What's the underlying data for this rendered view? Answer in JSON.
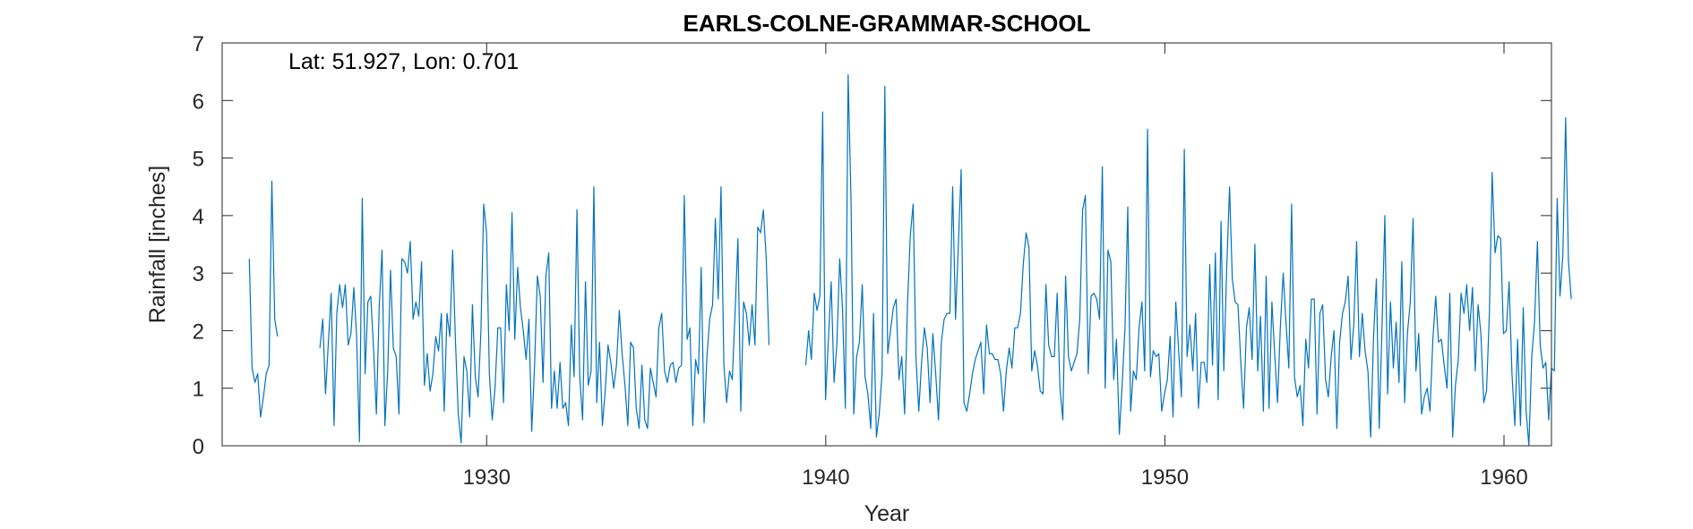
{
  "chart_data": {
    "type": "line",
    "title": "EARLS-COLNE-GRAMMAR-SCHOOL",
    "xlabel": "Year",
    "ylabel": "Rainfall [inches]",
    "annotation": "Lat: 51.927, Lon: 0.701",
    "xlim": [
      1922.2,
      1961.4
    ],
    "ylim": [
      0,
      7
    ],
    "xticks": [
      1930,
      1940,
      1950,
      1960
    ],
    "yticks": [
      0,
      1,
      2,
      3,
      4,
      5,
      6,
      7
    ],
    "grid": false,
    "line_color": "#0072BD",
    "series": [
      {
        "start": 1923.0,
        "step": 0.0833,
        "note_gaps": "null values mark missing months",
        "values": [
          3.25,
          1.35,
          1.1,
          1.25,
          0.5,
          0.85,
          1.25,
          1.4,
          4.6,
          2.2,
          1.9,
          null,
          null,
          null,
          null,
          null,
          null,
          null,
          null,
          null,
          null,
          null,
          null,
          null,
          null,
          1.7,
          2.2,
          0.9,
          1.8,
          2.65,
          0.35,
          2.3,
          2.8,
          2.4,
          2.8,
          1.75,
          1.95,
          2.75,
          1.9,
          0.07,
          4.3,
          1.25,
          2.5,
          2.6,
          1.7,
          0.55,
          2.4,
          3.4,
          0.35,
          1.3,
          3.05,
          1.7,
          1.55,
          0.55,
          3.25,
          3.2,
          3.0,
          3.55,
          2.2,
          2.5,
          2.25,
          3.2,
          1.05,
          1.6,
          0.95,
          1.25,
          1.9,
          1.65,
          2.3,
          0.6,
          2.3,
          1.9,
          3.4,
          1.8,
          0.55,
          0.05,
          1.55,
          1.3,
          0.5,
          2.45,
          1.2,
          0.85,
          2.0,
          4.2,
          3.7,
          1.25,
          0.45,
          1.0,
          2.05,
          2.05,
          0.75,
          2.8,
          2.0,
          4.05,
          1.85,
          3.1,
          2.4,
          2.0,
          1.5,
          2.2,
          0.25,
          1.4,
          2.95,
          2.6,
          1.1,
          2.95,
          3.35,
          0.65,
          1.3,
          0.65,
          1.45,
          0.65,
          0.75,
          0.35,
          2.1,
          1.2,
          4.1,
          1.2,
          0.45,
          2.85,
          1.05,
          1.3,
          4.5,
          0.75,
          1.8,
          0.35,
          0.95,
          1.75,
          1.45,
          1.0,
          1.4,
          2.35,
          1.6,
          1.05,
          0.35,
          1.8,
          1.7,
          0.65,
          0.3,
          1.4,
          0.45,
          0.3,
          1.35,
          1.1,
          0.85,
          2.05,
          2.3,
          1.3,
          1.1,
          1.4,
          1.45,
          1.1,
          1.35,
          1.4,
          4.35,
          1.85,
          2.05,
          0.35,
          1.5,
          1.25,
          3.1,
          0.4,
          1.55,
          2.2,
          2.45,
          3.95,
          2.55,
          4.5,
          1.4,
          0.75,
          1.3,
          1.15,
          2.35,
          3.6,
          0.6,
          2.5,
          2.3,
          1.75,
          2.45,
          1.75,
          3.8,
          3.7,
          4.1,
          3.25,
          1.75,
          null,
          null,
          null,
          null,
          null,
          null,
          null,
          null,
          null,
          null,
          null,
          null,
          1.4,
          2.0,
          1.5,
          2.65,
          2.35,
          2.6,
          5.8,
          0.8,
          1.85,
          2.85,
          1.1,
          1.75,
          3.25,
          2.4,
          0.65,
          6.45,
          4.3,
          0.55,
          1.55,
          1.8,
          2.8,
          1.2,
          0.9,
          0.3,
          2.3,
          0.15,
          0.55,
          1.25,
          6.25,
          1.6,
          2.0,
          2.4,
          2.55,
          1.15,
          1.55,
          0.55,
          2.45,
          3.65,
          4.2,
          1.55,
          0.6,
          1.45,
          2.05,
          1.7,
          0.75,
          1.95,
          1.25,
          0.45,
          1.8,
          2.2,
          2.3,
          2.3,
          4.5,
          2.2,
          3.45,
          4.8,
          0.75,
          0.6,
          0.9,
          1.25,
          1.5,
          1.65,
          1.8,
          0.9,
          2.1,
          1.6,
          1.6,
          1.5,
          1.5,
          1.25,
          0.6,
          1.3,
          1.7,
          1.35,
          2.05,
          2.05,
          2.3,
          3.15,
          3.7,
          3.45,
          1.3,
          1.65,
          1.4,
          0.95,
          0.9,
          2.8,
          1.75,
          1.55,
          1.55,
          2.65,
          1.0,
          0.45,
          2.95,
          1.55,
          1.3,
          1.45,
          1.6,
          2.2,
          4.1,
          4.35,
          1.25,
          2.6,
          2.65,
          2.55,
          2.2,
          4.85,
          1.0,
          3.4,
          3.2,
          1.15,
          1.85,
          0.2,
          1.05,
          2.05,
          4.15,
          0.6,
          1.3,
          1.15,
          2.05,
          2.5,
          1.3,
          5.5,
          1.2,
          1.65,
          1.55,
          1.6,
          0.6,
          0.9,
          1.15,
          1.9,
          0.5,
          2.5,
          1.65,
          0.85,
          5.15,
          1.55,
          2.1,
          1.3,
          2.3,
          0.65,
          1.45,
          1.45,
          1.1,
          3.15,
          1.4,
          3.35,
          0.8,
          3.9,
          1.3,
          3.05,
          4.5,
          2.9,
          2.5,
          2.45,
          1.45,
          0.65,
          2.05,
          2.4,
          1.5,
          3.5,
          1.3,
          2.25,
          0.6,
          2.95,
          0.65,
          2.5,
          1.6,
          0.75,
          2.05,
          3.0,
          2.15,
          1.35,
          4.2,
          1.2,
          0.85,
          1.05,
          0.35,
          1.85,
          1.35,
          2.55,
          2.55,
          0.55,
          2.3,
          2.45,
          1.15,
          0.85,
          1.55,
          2.0,
          0.3,
          1.8,
          2.3,
          2.5,
          2.95,
          1.5,
          2.1,
          3.55,
          1.55,
          2.3,
          1.65,
          1.3,
          0.15,
          1.9,
          2.9,
          0.3,
          2.05,
          4.0,
          0.9,
          2.5,
          1.35,
          2.15,
          1.1,
          3.2,
          0.75,
          1.95,
          2.5,
          3.95,
          1.3,
          1.95,
          0.55,
          0.85,
          1.0,
          0.6,
          1.85,
          2.6,
          1.8,
          1.85,
          1.4,
          1.0,
          2.65,
          0.15,
          1.05,
          1.5,
          2.65,
          2.3,
          2.8,
          2.0,
          2.75,
          1.3,
          2.45,
          1.95,
          0.75,
          0.95,
          2.3,
          4.75,
          3.35,
          3.65,
          3.6,
          1.95,
          2.0,
          2.85,
          1.25,
          0.35,
          1.85,
          0.35,
          2.4,
          0.6,
          0.0,
          1.55,
          2.15,
          3.55,
          1.75,
          1.35,
          1.45,
          0.45,
          1.35,
          1.3,
          4.3,
          2.6,
          3.3,
          5.7,
          3.2,
          2.55
        ]
      }
    ]
  }
}
